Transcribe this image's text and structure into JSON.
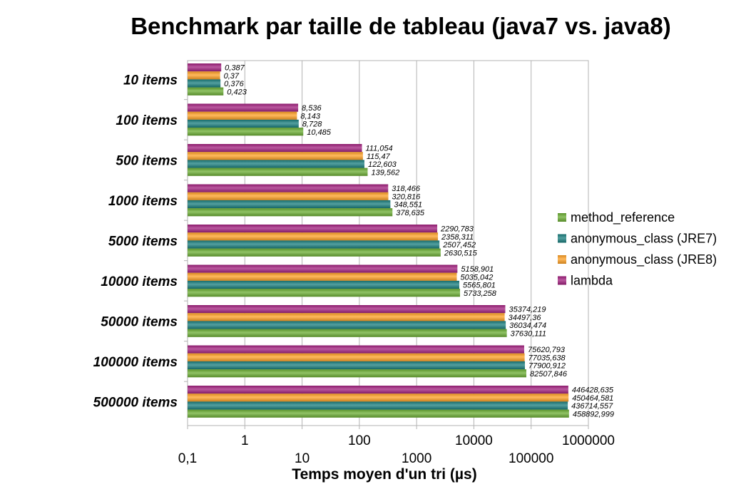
{
  "chart_data": {
    "type": "bar",
    "orientation": "horizontal",
    "title": "Benchmark par taille de tableau (java7 vs. java8)",
    "xlabel": "Temps moyen d'un tri  (µs)",
    "x_scale": "log",
    "xlim": [
      0.1,
      1000000
    ],
    "x_ticks": [
      "0,1",
      "1",
      "10",
      "100",
      "1000",
      "10000",
      "100000",
      "1000000"
    ],
    "grid": true,
    "legend_position": "right",
    "categories": [
      "10 items",
      "100 items",
      "500 items",
      "1000 items",
      "5000 items",
      "10000 items",
      "50000 items",
      "100000 items",
      "500000 items"
    ],
    "series": [
      {
        "name": "lambda",
        "color": "#a3207f",
        "values": [
          0.387,
          8.536,
          111.054,
          318.466,
          2290.783,
          5158.901,
          35374.219,
          75620.793,
          446428.635
        ],
        "labels": [
          "0,387",
          "8,536",
          "111,054",
          "318,466",
          "2290,783",
          "5158,901",
          "35374,219",
          "75620,793",
          "446428,635"
        ]
      },
      {
        "name": "anonymous_class (JRE8)",
        "color": "#ffa126",
        "values": [
          0.37,
          8.143,
          115.47,
          320.816,
          2358.311,
          5035.042,
          34497.36,
          77035.638,
          450464.581
        ],
        "labels": [
          "0,37",
          "8,143",
          "115,47",
          "320,816",
          "2358,311",
          "5035,042",
          "34497,36",
          "77035,638",
          "450464,581"
        ]
      },
      {
        "name": "anonymous_class (JRE7)",
        "color": "#1a7f7f",
        "values": [
          0.376,
          8.728,
          122.603,
          348.551,
          2507.452,
          5565.801,
          36034.474,
          77900.912,
          436714.557
        ],
        "labels": [
          "0,376",
          "8,728",
          "122,603",
          "348,551",
          "2507,452",
          "5565,801",
          "36034,474",
          "77900,912",
          "436714,557"
        ]
      },
      {
        "name": "method_reference",
        "color": "#6bae33",
        "values": [
          0.423,
          10.485,
          139.562,
          378.635,
          2630.515,
          5733.258,
          37630.111,
          82507.846,
          458892.999
        ],
        "labels": [
          "0,423",
          "10,485",
          "139,562",
          "378,635",
          "2630,515",
          "5733,258",
          "37630,111",
          "82507,846",
          "458892,999"
        ]
      }
    ],
    "legend_order": [
      "method_reference",
      "anonymous_class (JRE7)",
      "anonymous_class (JRE8)",
      "lambda"
    ]
  }
}
